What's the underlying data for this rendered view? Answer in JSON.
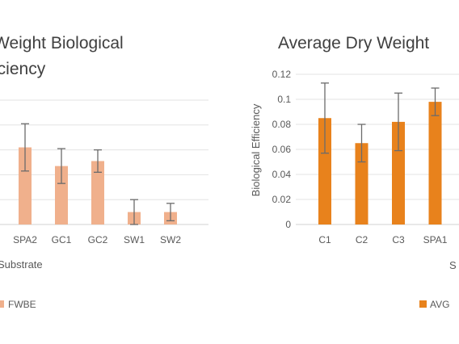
{
  "chart_data": [
    {
      "type": "bar",
      "title": "Weight Biological",
      "subtitle": "iciency",
      "xlabel": "Substrate",
      "ylabel": "",
      "categories": [
        "SPA2",
        "GC1",
        "GC2",
        "SW1",
        "SW2"
      ],
      "series": [
        {
          "name": "FWBE",
          "color": "#f0b08c",
          "values": [
            0.62,
            0.47,
            0.51,
            0.1,
            0.1
          ],
          "error": [
            0.19,
            0.14,
            0.09,
            0.1,
            0.07
          ]
        }
      ],
      "ylim": [
        0,
        1.0
      ],
      "grid": true,
      "legend": "bottom"
    },
    {
      "type": "bar",
      "title": "Average Dry Weight",
      "xlabel": "S",
      "ylabel": "Biological Efficiency",
      "categories": [
        "C1",
        "C2",
        "C3",
        "SPA1"
      ],
      "yticks": [
        "0",
        "0.02",
        "0.04",
        "0.06",
        "0.08",
        "0.1",
        "0.12"
      ],
      "series": [
        {
          "name": "AVG",
          "color": "#e8821c",
          "values": [
            0.085,
            0.065,
            0.082,
            0.098
          ],
          "error": [
            0.028,
            0.015,
            0.023,
            0.011
          ]
        }
      ],
      "ylim": [
        0,
        0.12
      ],
      "grid": true,
      "legend": "bottom"
    }
  ]
}
